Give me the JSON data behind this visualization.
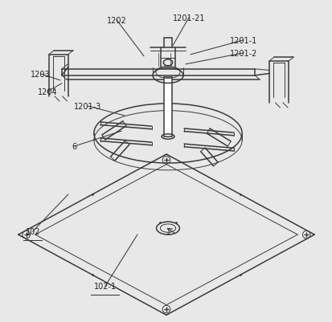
{
  "background_color": "#e8e8e8",
  "line_color": "#3a3a3a",
  "label_color": "#222222",
  "fig_width": 4.14,
  "fig_height": 4.02,
  "dpi": 100
}
